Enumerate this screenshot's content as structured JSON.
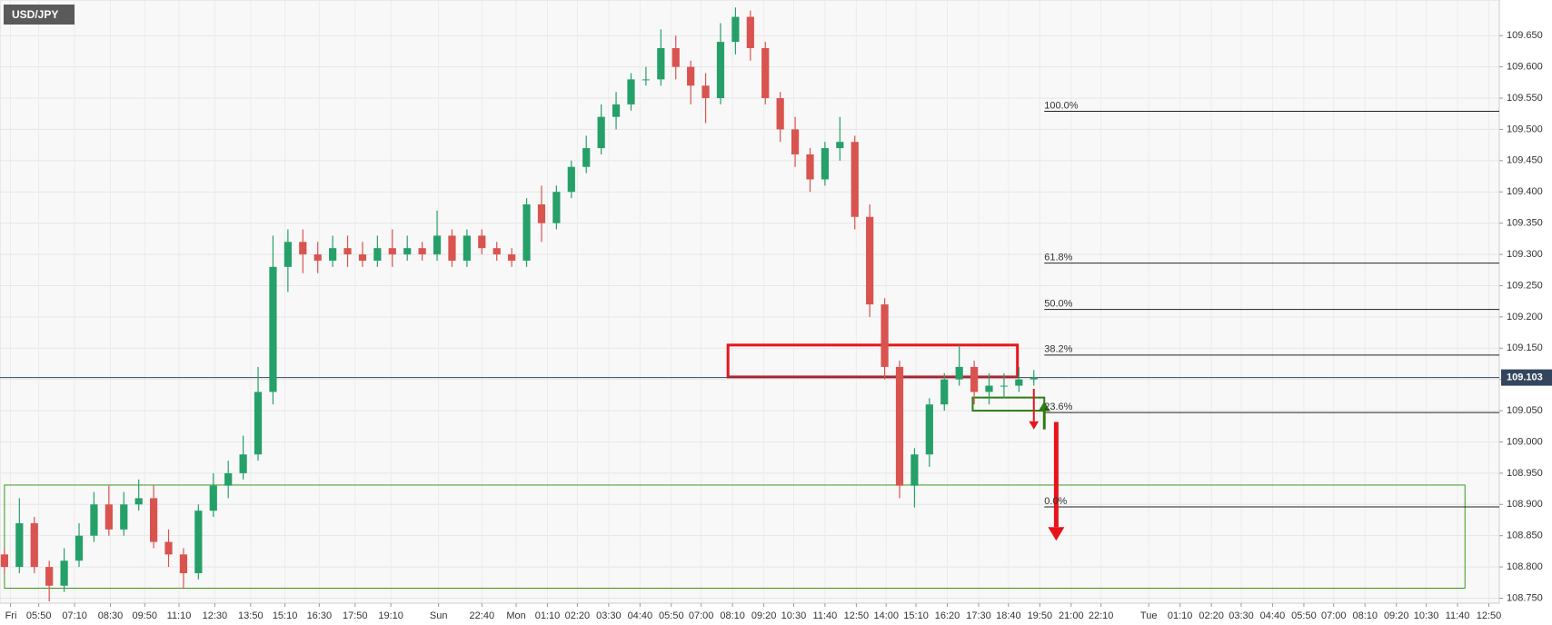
{
  "chart_data": {
    "type": "candlestick",
    "title": "USD/JPY",
    "x": [
      0,
      1,
      2,
      3,
      4,
      5,
      6,
      7,
      8,
      9,
      10,
      11,
      12,
      13,
      14,
      15,
      16,
      17,
      18,
      19,
      20,
      21,
      22,
      23,
      24,
      25,
      26,
      27,
      28,
      29,
      30,
      31,
      32,
      33,
      34,
      35,
      36,
      37,
      38,
      39,
      40,
      41,
      42,
      43,
      44,
      45,
      46,
      47,
      48,
      49,
      50,
      51,
      52,
      53,
      54,
      55,
      56,
      57,
      58,
      59,
      60,
      61,
      62,
      63,
      64,
      65,
      66,
      67,
      68,
      69
    ],
    "open": [
      108.82,
      108.8,
      108.87,
      108.8,
      108.77,
      108.81,
      108.85,
      108.9,
      108.86,
      108.9,
      108.91,
      108.84,
      108.82,
      108.79,
      108.89,
      108.93,
      108.95,
      108.98,
      109.08,
      109.28,
      109.32,
      109.3,
      109.29,
      109.31,
      109.3,
      109.29,
      109.31,
      109.3,
      109.31,
      109.3,
      109.33,
      109.29,
      109.33,
      109.31,
      109.3,
      109.29,
      109.38,
      109.35,
      109.4,
      109.44,
      109.47,
      109.52,
      109.54,
      109.58,
      109.58,
      109.63,
      109.6,
      109.57,
      109.55,
      109.64,
      109.68,
      109.63,
      109.55,
      109.5,
      109.46,
      109.42,
      109.47,
      109.48,
      109.36,
      109.22,
      109.12,
      108.93,
      108.98,
      109.06,
      109.1,
      109.12,
      109.08,
      109.09,
      109.09,
      109.1
    ],
    "high": [
      108.83,
      108.91,
      108.88,
      108.81,
      108.83,
      108.87,
      108.92,
      108.93,
      108.92,
      108.94,
      108.93,
      108.86,
      108.83,
      108.9,
      108.95,
      108.97,
      109.01,
      109.12,
      109.33,
      109.34,
      109.34,
      109.32,
      109.33,
      109.33,
      109.32,
      109.33,
      109.34,
      109.33,
      109.32,
      109.37,
      109.34,
      109.34,
      109.34,
      109.32,
      109.31,
      109.39,
      109.41,
      109.41,
      109.45,
      109.49,
      109.54,
      109.56,
      109.59,
      109.6,
      109.66,
      109.65,
      109.61,
      109.59,
      109.67,
      109.695,
      109.69,
      109.64,
      109.56,
      109.52,
      109.47,
      109.48,
      109.52,
      109.49,
      109.38,
      109.23,
      109.13,
      108.99,
      109.07,
      109.11,
      109.155,
      109.13,
      109.11,
      109.11,
      109.12,
      109.115
    ],
    "low": [
      108.79,
      108.79,
      108.79,
      108.745,
      108.76,
      108.8,
      108.84,
      108.85,
      108.85,
      108.89,
      108.83,
      108.8,
      108.765,
      108.78,
      108.88,
      108.91,
      108.94,
      108.97,
      109.06,
      109.24,
      109.27,
      109.27,
      109.28,
      109.28,
      109.28,
      109.28,
      109.28,
      109.29,
      109.29,
      109.29,
      109.28,
      109.28,
      109.3,
      109.29,
      109.28,
      109.28,
      109.32,
      109.34,
      109.39,
      109.43,
      109.46,
      109.5,
      109.53,
      109.57,
      109.57,
      109.58,
      109.54,
      109.51,
      109.54,
      109.62,
      109.61,
      109.54,
      109.48,
      109.44,
      109.4,
      109.41,
      109.45,
      109.34,
      109.2,
      109.1,
      108.91,
      108.895,
      108.96,
      109.05,
      109.09,
      109.06,
      109.06,
      109.07,
      109.08,
      109.09
    ],
    "close": [
      108.8,
      108.87,
      108.8,
      108.77,
      108.81,
      108.85,
      108.9,
      108.86,
      108.9,
      108.91,
      108.84,
      108.82,
      108.79,
      108.89,
      108.93,
      108.95,
      108.98,
      109.08,
      109.28,
      109.32,
      109.3,
      109.29,
      109.31,
      109.3,
      109.29,
      109.31,
      109.3,
      109.31,
      109.3,
      109.33,
      109.29,
      109.33,
      109.31,
      109.3,
      109.29,
      109.38,
      109.35,
      109.4,
      109.44,
      109.47,
      109.52,
      109.54,
      109.58,
      109.58,
      109.63,
      109.6,
      109.57,
      109.55,
      109.64,
      109.68,
      109.63,
      109.55,
      109.5,
      109.46,
      109.42,
      109.47,
      109.48,
      109.36,
      109.22,
      109.12,
      108.93,
      108.98,
      109.06,
      109.1,
      109.12,
      109.08,
      109.09,
      109.09,
      109.1,
      109.103
    ],
    "colors": {
      "up": "#26a069",
      "down": "#d9534f"
    },
    "xlim": [
      -0.3,
      100.2
    ],
    "xticks": [
      {
        "value": 0.4,
        "label": "Fri"
      },
      {
        "value": 2.3,
        "label": "05:50"
      },
      {
        "value": 4.7,
        "label": "07:10"
      },
      {
        "value": 7.1,
        "label": "08:30"
      },
      {
        "value": 9.4,
        "label": "09:50"
      },
      {
        "value": 11.7,
        "label": "11:10"
      },
      {
        "value": 14.1,
        "label": "12:30"
      },
      {
        "value": 16.5,
        "label": "13:50"
      },
      {
        "value": 18.8,
        "label": "15:10"
      },
      {
        "value": 21.1,
        "label": "16:30"
      },
      {
        "value": 23.5,
        "label": "17:50"
      },
      {
        "value": 25.9,
        "label": "19:10"
      },
      {
        "value": 29.1,
        "label": "Sun"
      },
      {
        "value": 32,
        "label": "22:40"
      },
      {
        "value": 34.3,
        "label": "Mon"
      },
      {
        "value": 36.4,
        "label": "01:10"
      },
      {
        "value": 38.4,
        "label": "02:20"
      },
      {
        "value": 40.5,
        "label": "03:30"
      },
      {
        "value": 42.6,
        "label": "04:40"
      },
      {
        "value": 44.7,
        "label": "05:50"
      },
      {
        "value": 46.7,
        "label": "07:00"
      },
      {
        "value": 48.8,
        "label": "08:10"
      },
      {
        "value": 50.9,
        "label": "09:20"
      },
      {
        "value": 52.9,
        "label": "10:30"
      },
      {
        "value": 55,
        "label": "11:40"
      },
      {
        "value": 57.1,
        "label": "12:50"
      },
      {
        "value": 59.1,
        "label": "14:00"
      },
      {
        "value": 61.1,
        "label": "15:10"
      },
      {
        "value": 63.2,
        "label": "16:20"
      },
      {
        "value": 65.3,
        "label": "17:30"
      },
      {
        "value": 67.3,
        "label": "18:40"
      },
      {
        "value": 69.4,
        "label": "19:50"
      },
      {
        "value": 71.5,
        "label": "21:00"
      },
      {
        "value": 73.5,
        "label": "22:10"
      },
      {
        "value": 76.7,
        "label": "Tue"
      },
      {
        "value": 78.8,
        "label": "01:10"
      },
      {
        "value": 80.9,
        "label": "02:20"
      },
      {
        "value": 82.9,
        "label": "03:30"
      },
      {
        "value": 85,
        "label": "04:40"
      },
      {
        "value": 87.1,
        "label": "05:50"
      },
      {
        "value": 89.1,
        "label": "07:00"
      },
      {
        "value": 91.2,
        "label": "08:10"
      },
      {
        "value": 93.3,
        "label": "09:20"
      },
      {
        "value": 95.3,
        "label": "10:30"
      },
      {
        "value": 97.4,
        "label": "11:40"
      },
      {
        "value": 99.5,
        "label": "12:50"
      }
    ],
    "ylim": [
      108.742,
      109.707
    ],
    "yticks": [
      {
        "value": 108.75,
        "label": "108.750"
      },
      {
        "value": 108.8,
        "label": "108.800"
      },
      {
        "value": 108.85,
        "label": "108.850"
      },
      {
        "value": 108.9,
        "label": "108.900"
      },
      {
        "value": 108.95,
        "label": "108.950"
      },
      {
        "value": 109,
        "label": "109.000"
      },
      {
        "value": 109.05,
        "label": "109.050"
      },
      {
        "value": 109.1,
        "label": "109.100"
      },
      {
        "value": 109.15,
        "label": "109.150"
      },
      {
        "value": 109.2,
        "label": "109.200"
      },
      {
        "value": 109.25,
        "label": "109.250"
      },
      {
        "value": 109.3,
        "label": "109.300"
      },
      {
        "value": 109.35,
        "label": "109.350"
      },
      {
        "value": 109.4,
        "label": "109.400"
      },
      {
        "value": 109.45,
        "label": "109.450"
      },
      {
        "value": 109.5,
        "label": "109.500"
      },
      {
        "value": 109.55,
        "label": "109.550"
      },
      {
        "value": 109.6,
        "label": "109.600"
      },
      {
        "value": 109.65,
        "label": "109.650"
      }
    ],
    "grid": true,
    "last_price": 109.103,
    "last_price_color": "#34465e",
    "fib_x": 69.7,
    "fib_levels": [
      {
        "label": "100.0%",
        "value": 109.529
      },
      {
        "label": "61.8%",
        "value": 109.286
      },
      {
        "label": "50.0%",
        "value": 109.212
      },
      {
        "label": "38.2%",
        "value": 109.139
      },
      {
        "label": "23.6%",
        "value": 109.047
      },
      {
        "label": "0.0%",
        "value": 108.896
      }
    ],
    "boxes": [
      {
        "color": "#e8141b",
        "line_width": 3,
        "x": [
          48.5,
          67.9
        ],
        "y": [
          109.104,
          109.155
        ]
      },
      {
        "color": "#2e7d14",
        "line_width": 2,
        "x": [
          64.9,
          69.7
        ],
        "y": [
          109.05,
          109.071
        ]
      },
      {
        "color": "#3a9a1a",
        "line_width": 1,
        "x": [
          0,
          97.9
        ],
        "y": [
          108.766,
          108.931
        ]
      }
    ],
    "arrows": [
      {
        "color": "#e8141b",
        "line_width": 2,
        "x": 69.0,
        "y": [
          109.085,
          109.02
        ]
      },
      {
        "color": "#2e7d14",
        "line_width": 3,
        "x": 69.7,
        "y": [
          109.02,
          109.065
        ]
      },
      {
        "color": "#e8141b",
        "line_width": 5,
        "x": 70.5,
        "y": [
          109.032,
          108.842
        ]
      }
    ]
  }
}
